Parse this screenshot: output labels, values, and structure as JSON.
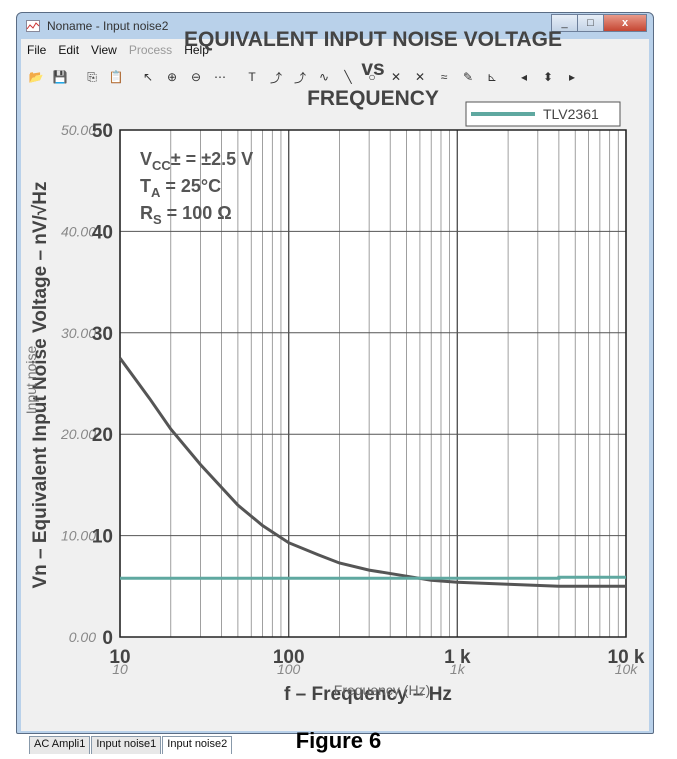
{
  "window": {
    "title": "Noname - Input noise2",
    "close_glyph": "x",
    "min_glyph": "_",
    "max_glyph": "□"
  },
  "menu": [
    {
      "label": "File",
      "disabled": false
    },
    {
      "label": "Edit",
      "disabled": false
    },
    {
      "label": "View",
      "disabled": false
    },
    {
      "label": "Process",
      "disabled": true
    },
    {
      "label": "Help",
      "disabled": false
    }
  ],
  "toolbar": [
    {
      "name": "open-icon",
      "glyph": "📂"
    },
    {
      "name": "save-icon",
      "glyph": "💾"
    },
    {
      "name": "copy-icon",
      "glyph": "⎘"
    },
    {
      "name": "paste-icon",
      "glyph": "📋"
    },
    {
      "name": "pointer-icon",
      "glyph": "↖"
    },
    {
      "name": "zoom-in-icon",
      "glyph": "⊕"
    },
    {
      "name": "zoom-out-icon",
      "glyph": "⊖"
    },
    {
      "name": "grid-icon",
      "glyph": "⋯"
    },
    {
      "name": "text-icon",
      "glyph": "T"
    },
    {
      "name": "cursor-a-icon",
      "glyph": "⤴"
    },
    {
      "name": "cursor-b-icon",
      "glyph": "⤴"
    },
    {
      "name": "curve-icon",
      "glyph": "∿"
    },
    {
      "name": "line-icon",
      "glyph": "╲"
    },
    {
      "name": "circle-icon",
      "glyph": "○"
    },
    {
      "name": "marker-a-icon",
      "glyph": "✕"
    },
    {
      "name": "marker-b-icon",
      "glyph": "✕"
    },
    {
      "name": "wave-icon",
      "glyph": "≈"
    },
    {
      "name": "pen-icon",
      "glyph": "✎"
    },
    {
      "name": "angle-icon",
      "glyph": "⊾"
    },
    {
      "name": "left-arrow-icon",
      "glyph": "◂"
    },
    {
      "name": "updown-arrow-icon",
      "glyph": "⬍"
    },
    {
      "name": "right-arrow-icon",
      "glyph": "▸"
    }
  ],
  "tabs": [
    {
      "label": "AC Ampli1",
      "active": false
    },
    {
      "label": "Input noise1",
      "active": false
    },
    {
      "label": "Input noise2",
      "active": true
    }
  ],
  "figure_caption": "Figure 6",
  "chart_data": {
    "type": "line",
    "title_lines": [
      "EQUIVALENT INPUT NOISE VOLTAGE",
      "vs",
      "FREQUENCY"
    ],
    "xlabel": "f – Frequency – Hz",
    "xlabel_overlay": "Frequency (Hz)",
    "ylabel": "Vn – Equivalent Input Noise Voltage – nV/√Hz",
    "ylabel_overlay": "Input noise",
    "x_scale": "log",
    "xlim": [
      10,
      10000
    ],
    "ylim": [
      0,
      50
    ],
    "grid": true,
    "legend_position": "top-right",
    "x_ticks": [
      "10",
      "100",
      "1 k",
      "10 k"
    ],
    "x_ticks_overlay": [
      "10",
      "100",
      "1k",
      "10k"
    ],
    "y_ticks": [
      "0",
      "10",
      "20",
      "30",
      "40",
      "50"
    ],
    "y_ticks_overlay": [
      "0.00",
      "10.00",
      "20.00",
      "30.00",
      "40.00",
      "50.00"
    ],
    "conditions": [
      {
        "main": "V",
        "sub": "CC",
        "rest": "± = ±2.5 V"
      },
      {
        "main": "T",
        "sub": "A",
        "rest": " = 25°C"
      },
      {
        "main": "R",
        "sub": "S",
        "rest": " = 100 Ω"
      }
    ],
    "series": [
      {
        "name": "",
        "color": "#555555",
        "x": [
          10,
          15,
          20,
          30,
          50,
          70,
          100,
          150,
          200,
          300,
          500,
          700,
          1000,
          2000,
          4000,
          10000
        ],
        "y": [
          27.5,
          23.5,
          20.5,
          17,
          13,
          11,
          9.3,
          8.1,
          7.3,
          6.6,
          6,
          5.6,
          5.4,
          5.2,
          5,
          5
        ]
      },
      {
        "name": "TLV2361",
        "color": "#5fa8a0",
        "x": [
          10,
          4000,
          4000,
          10000
        ],
        "y": [
          5.8,
          5.8,
          5.9,
          5.9
        ]
      }
    ]
  }
}
